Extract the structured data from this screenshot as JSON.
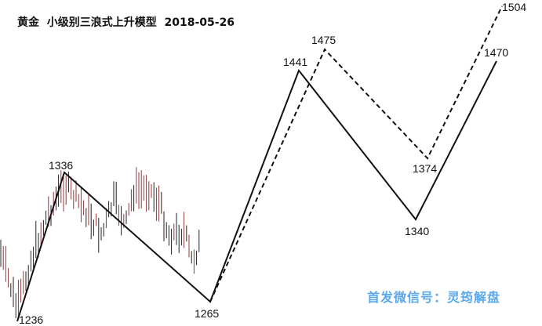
{
  "chart_data": {
    "type": "line",
    "title": "黄金  小级别三浪式上升模型  2018-05-26",
    "watermark": "首发微信号：灵筠解盘",
    "series": [
      {
        "style": "solid",
        "color": "#111111",
        "points": [
          1236,
          1336,
          1265,
          1441,
          1340,
          1470
        ]
      },
      {
        "style": "dashed",
        "color": "#111111",
        "points": [
          1265,
          1475,
          1374,
          1504
        ]
      }
    ],
    "labels": [
      "1236",
      "1336",
      "1265",
      "1441",
      "1340",
      "1470",
      "1475",
      "1374",
      "1504"
    ],
    "price_bars_color": "#8b3a3a",
    "grid": false
  }
}
